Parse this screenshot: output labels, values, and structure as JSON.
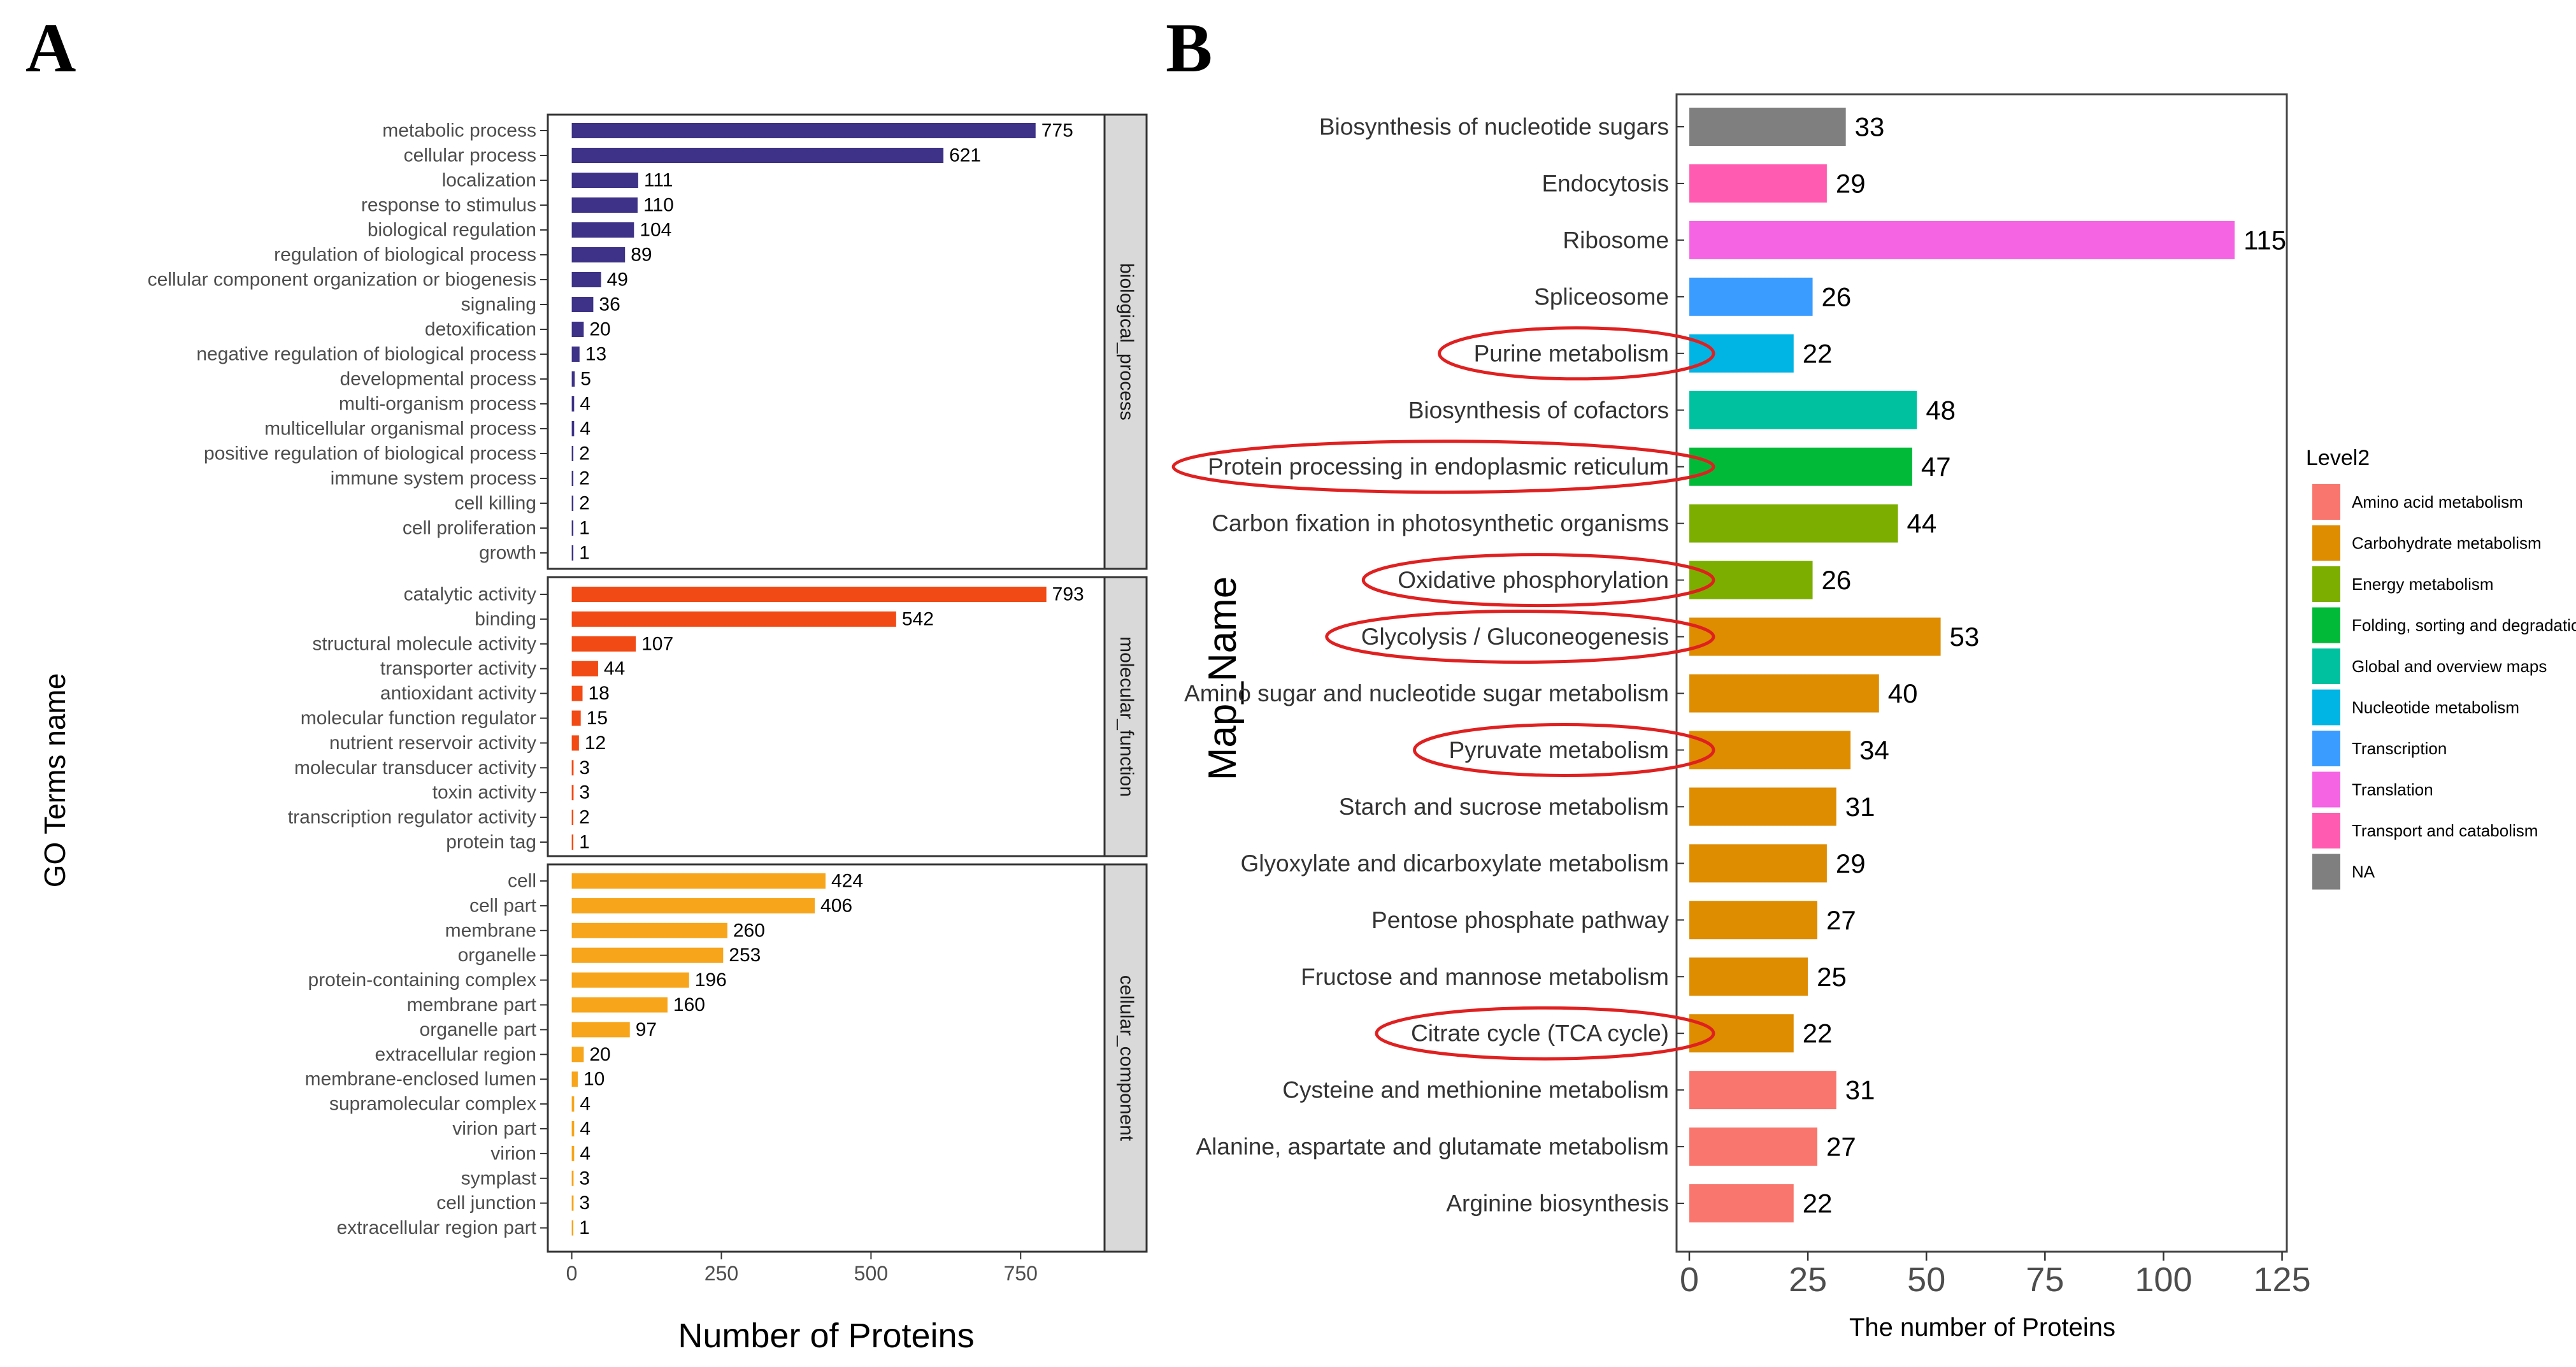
{
  "panel_a": {
    "letter": "A",
    "y_axis_title": "GO Terms name",
    "x_axis_title": "Number of Proteins",
    "x_ticks": [
      0,
      250,
      500,
      750
    ]
  },
  "panel_b": {
    "letter": "B",
    "y_axis_title": "Map_Name",
    "x_axis_title": "The number of Proteins",
    "x_ticks": [
      0,
      25,
      50,
      75,
      100,
      125
    ]
  },
  "chart_data": [
    {
      "type": "bar",
      "orientation": "horizontal",
      "title": "A",
      "xlabel": "Number of Proteins",
      "ylabel": "GO Terms name",
      "xlim": [
        -40,
        920
      ],
      "facets": [
        {
          "name": "biological_process",
          "color": "#3d3287",
          "categories": [
            "metabolic process",
            "cellular process",
            "localization",
            "response to stimulus",
            "biological regulation",
            "regulation of biological process",
            "cellular component organization or biogenesis",
            "signaling",
            "detoxification",
            "negative regulation of biological process",
            "developmental process",
            "multi-organism process",
            "multicellular organismal process",
            "positive regulation of biological process",
            "immune system process",
            "cell killing",
            "cell proliferation",
            "growth"
          ],
          "values": [
            775,
            621,
            111,
            110,
            104,
            89,
            49,
            36,
            20,
            13,
            5,
            4,
            4,
            2,
            2,
            2,
            1,
            1
          ]
        },
        {
          "name": "molecular_function",
          "color": "#f24a14",
          "categories": [
            "catalytic activity",
            "binding",
            "structural molecule activity",
            "transporter activity",
            "antioxidant activity",
            "molecular function regulator",
            "nutrient reservoir activity",
            "molecular transducer activity",
            "toxin activity",
            "transcription regulator activity",
            "protein tag"
          ],
          "values": [
            793,
            542,
            107,
            44,
            18,
            15,
            12,
            3,
            3,
            2,
            1
          ]
        },
        {
          "name": "cellular_component",
          "color": "#f7a51a",
          "categories": [
            "cell",
            "cell part",
            "membrane",
            "organelle",
            "protein-containing complex",
            "membrane part",
            "organelle part",
            "extracellular region",
            "membrane-enclosed lumen",
            "supramolecular complex",
            "virion part",
            "virion",
            "symplast",
            "cell junction",
            "extracellular region part"
          ],
          "values": [
            424,
            406,
            260,
            253,
            196,
            160,
            97,
            20,
            10,
            4,
            4,
            4,
            3,
            3,
            1
          ]
        }
      ]
    },
    {
      "type": "bar",
      "orientation": "horizontal",
      "title": "B",
      "xlabel": "The number of Proteins",
      "ylabel": "Map_Name",
      "xlim": [
        0,
        126
      ],
      "legend_title": "Level2",
      "legend_position": "right",
      "legend": [
        {
          "name": "Amino acid metabolism",
          "color": "#f8766d"
        },
        {
          "name": "Carbohydrate metabolism",
          "color": "#de8c00"
        },
        {
          "name": "Energy metabolism",
          "color": "#7cae00"
        },
        {
          "name": "Folding, sorting and degradation",
          "color": "#00ba38"
        },
        {
          "name": "Global and overview maps",
          "color": "#00c19f"
        },
        {
          "name": "Nucleotide metabolism",
          "color": "#00b4e4"
        },
        {
          "name": "Transcription",
          "color": "#3b9cff"
        },
        {
          "name": "Translation",
          "color": "#f564e3"
        },
        {
          "name": "Transport and catabolism",
          "color": "#ff5bb0"
        },
        {
          "name": "NA",
          "color": "#7f7f7f"
        }
      ],
      "bars": [
        {
          "name": "Biosynthesis of nucleotide sugars",
          "value": 33,
          "group": "NA",
          "highlighted": false
        },
        {
          "name": "Endocytosis",
          "value": 29,
          "group": "Transport and catabolism",
          "highlighted": false
        },
        {
          "name": "Ribosome",
          "value": 115,
          "group": "Translation",
          "highlighted": false
        },
        {
          "name": "Spliceosome",
          "value": 26,
          "group": "Transcription",
          "highlighted": false
        },
        {
          "name": "Purine metabolism",
          "value": 22,
          "group": "Nucleotide metabolism",
          "highlighted": true
        },
        {
          "name": "Biosynthesis of cofactors",
          "value": 48,
          "group": "Global and overview maps",
          "highlighted": false
        },
        {
          "name": "Protein processing in endoplasmic reticulum",
          "value": 47,
          "group": "Folding, sorting and degradation",
          "highlighted": true
        },
        {
          "name": "Carbon fixation in photosynthetic organisms",
          "value": 44,
          "group": "Energy metabolism",
          "highlighted": false
        },
        {
          "name": "Oxidative phosphorylation",
          "value": 26,
          "group": "Energy metabolism",
          "highlighted": true
        },
        {
          "name": "Glycolysis / Gluconeogenesis",
          "value": 53,
          "group": "Carbohydrate metabolism",
          "highlighted": true
        },
        {
          "name": "Amino sugar and nucleotide sugar metabolism",
          "value": 40,
          "group": "Carbohydrate metabolism",
          "highlighted": false
        },
        {
          "name": "Pyruvate metabolism",
          "value": 34,
          "group": "Carbohydrate metabolism",
          "highlighted": true
        },
        {
          "name": "Starch and sucrose metabolism",
          "value": 31,
          "group": "Carbohydrate metabolism",
          "highlighted": false
        },
        {
          "name": "Glyoxylate and dicarboxylate metabolism",
          "value": 29,
          "group": "Carbohydrate metabolism",
          "highlighted": false
        },
        {
          "name": "Pentose phosphate pathway",
          "value": 27,
          "group": "Carbohydrate metabolism",
          "highlighted": false
        },
        {
          "name": "Fructose and mannose metabolism",
          "value": 25,
          "group": "Carbohydrate metabolism",
          "highlighted": false
        },
        {
          "name": "Citrate cycle (TCA cycle)",
          "value": 22,
          "group": "Carbohydrate metabolism",
          "highlighted": true
        },
        {
          "name": "Cysteine and methionine metabolism",
          "value": 31,
          "group": "Amino acid metabolism",
          "highlighted": false
        },
        {
          "name": "Alanine, aspartate and glutamate metabolism",
          "value": 27,
          "group": "Amino acid metabolism",
          "highlighted": false
        },
        {
          "name": "Arginine biosynthesis",
          "value": 22,
          "group": "Amino acid metabolism",
          "highlighted": false
        }
      ]
    }
  ]
}
